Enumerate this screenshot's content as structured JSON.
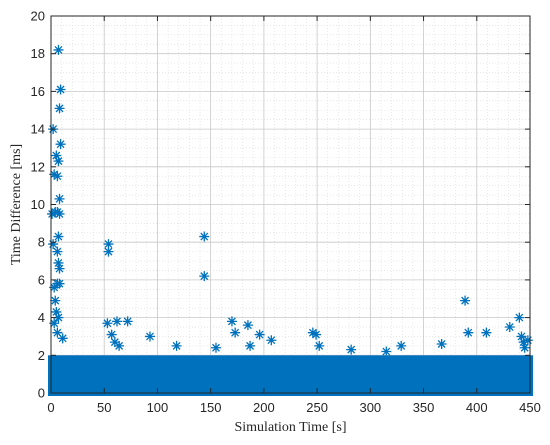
{
  "chart_data": {
    "type": "scatter",
    "marker": "asterisk",
    "color": "#0072BD",
    "xlabel": "Simulation Time [s]",
    "ylabel": "Time Difference [ms]",
    "xlim": [
      0,
      450
    ],
    "ylim": [
      0,
      20
    ],
    "xticks": [
      0,
      50,
      100,
      150,
      200,
      250,
      300,
      350,
      400,
      450
    ],
    "yticks": [
      0,
      2,
      4,
      6,
      8,
      10,
      12,
      14,
      16,
      18,
      20
    ],
    "grid": true,
    "minor_grid": true,
    "dense_band": {
      "x_range": [
        0,
        450
      ],
      "y_range": [
        0,
        2.0
      ],
      "note": ""
    },
    "points": [
      [
        7,
        18.2
      ],
      [
        9,
        16.1
      ],
      [
        8,
        15.1
      ],
      [
        2,
        14.0
      ],
      [
        9,
        13.2
      ],
      [
        5,
        12.6
      ],
      [
        7,
        12.3
      ],
      [
        3,
        11.6
      ],
      [
        6,
        11.5
      ],
      [
        8,
        10.3
      ],
      [
        4,
        9.6
      ],
      [
        6,
        9.6
      ],
      [
        8,
        9.5
      ],
      [
        1,
        9.5
      ],
      [
        7,
        8.3
      ],
      [
        2,
        7.9
      ],
      [
        6,
        7.5
      ],
      [
        7,
        6.9
      ],
      [
        8,
        6.6
      ],
      [
        6,
        5.8
      ],
      [
        3,
        5.6
      ],
      [
        8,
        5.8
      ],
      [
        4,
        4.9
      ],
      [
        5,
        4.3
      ],
      [
        7,
        4.0
      ],
      [
        3,
        3.7
      ],
      [
        6,
        3.2
      ],
      [
        11,
        2.9
      ],
      [
        54,
        7.9
      ],
      [
        54,
        7.5
      ],
      [
        53,
        3.7
      ],
      [
        57,
        3.1
      ],
      [
        62,
        3.8
      ],
      [
        60,
        2.7
      ],
      [
        64,
        2.5
      ],
      [
        72,
        3.8
      ],
      [
        93,
        3.0
      ],
      [
        118,
        2.5
      ],
      [
        144,
        8.3
      ],
      [
        144,
        6.2
      ],
      [
        155,
        2.4
      ],
      [
        170,
        3.8
      ],
      [
        173,
        3.2
      ],
      [
        185,
        3.6
      ],
      [
        187,
        2.5
      ],
      [
        196,
        3.1
      ],
      [
        207,
        2.8
      ],
      [
        246,
        3.2
      ],
      [
        249,
        3.1
      ],
      [
        252,
        2.5
      ],
      [
        282,
        2.3
      ],
      [
        315,
        2.2
      ],
      [
        329,
        2.5
      ],
      [
        367,
        2.6
      ],
      [
        389,
        4.9
      ],
      [
        392,
        3.2
      ],
      [
        409,
        3.2
      ],
      [
        431,
        3.5
      ],
      [
        440,
        4.0
      ],
      [
        442,
        3.0
      ],
      [
        445,
        2.4
      ],
      [
        448,
        2.8
      ],
      [
        444,
        2.7
      ]
    ]
  }
}
